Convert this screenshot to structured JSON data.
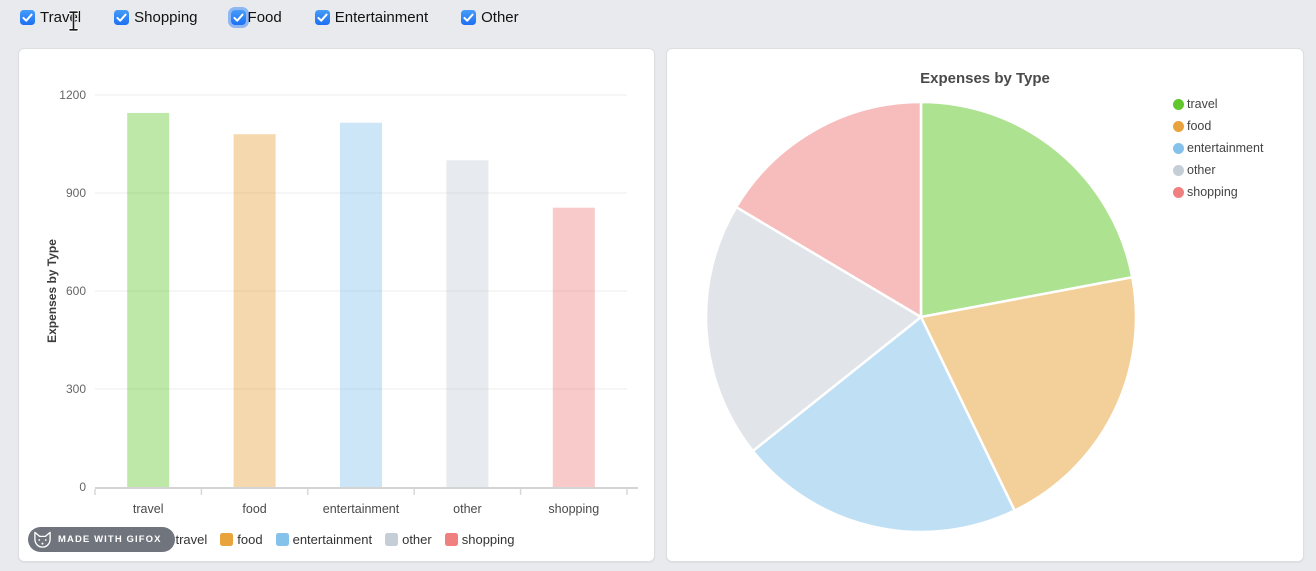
{
  "controls": {
    "checkboxes": [
      {
        "label": "Travel",
        "checked": true,
        "focused": false
      },
      {
        "label": "Shopping",
        "checked": true,
        "focused": false
      },
      {
        "label": "Food",
        "checked": true,
        "focused": true
      },
      {
        "label": "Entertainment",
        "checked": true,
        "focused": false
      },
      {
        "label": "Other",
        "checked": true,
        "focused": false
      }
    ],
    "text_cursor_after": "Travel"
  },
  "colors": {
    "checkbox_blue_top": "#459cf9",
    "checkbox_blue_bottom": "#1d6ff2",
    "focus_ring": "#5292f7",
    "card_background": "#ffffff",
    "page_background": "#e9eaed",
    "badge_background": "#70747d"
  },
  "chart_data": [
    {
      "type": "bar",
      "title": "",
      "ylabel": "Expenses by Type",
      "categories": [
        "travel",
        "food",
        "entertainment",
        "other",
        "shopping"
      ],
      "values": [
        1145,
        1080,
        1115,
        1000,
        855
      ],
      "yticks": [
        0,
        300,
        600,
        900,
        1200
      ],
      "ylim": [
        0,
        1200
      ],
      "grid": true,
      "legend_position": "bottom",
      "legend_labels": [
        "travel",
        "food",
        "entertainment",
        "other",
        "shopping"
      ],
      "colors": [
        "#61c72d",
        "#e8a33c",
        "#85c2eb",
        "#c5cdd7",
        "#f08080"
      ],
      "bar_fill_opacity": 0.42
    },
    {
      "type": "pie",
      "title": "Expenses by Type",
      "labels": [
        "travel",
        "food",
        "entertainment",
        "other",
        "shopping"
      ],
      "values": [
        1145,
        1080,
        1115,
        1000,
        855
      ],
      "start_angle_deg": 0,
      "direction": "clockwise",
      "legend_position": "top-right",
      "colors": [
        "#61c72d",
        "#e8a33c",
        "#85c2eb",
        "#c5cdd7",
        "#f08080"
      ],
      "slice_fill_opacity": 0.52
    }
  ],
  "badge": {
    "text": "MADE WITH GIFOX"
  }
}
